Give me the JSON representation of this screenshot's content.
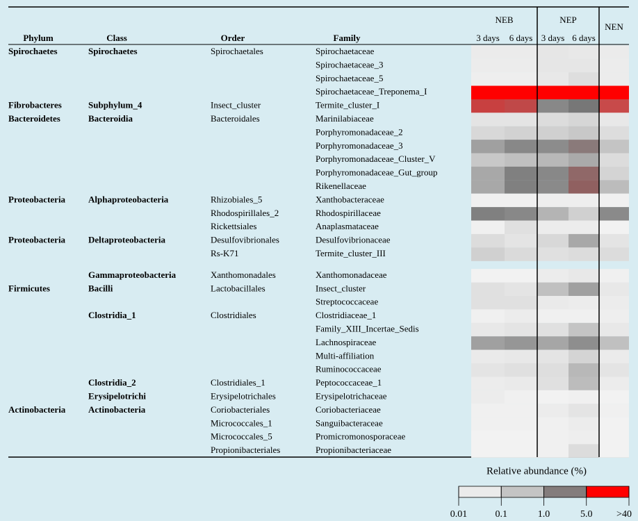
{
  "header": {
    "columns": [
      "Phylum",
      "Class",
      "Order",
      "Family"
    ],
    "groups": [
      {
        "name": "NEB",
        "days": [
          "3 days",
          "6 days"
        ]
      },
      {
        "name": "NEP",
        "days": [
          "3 days",
          "6 days"
        ]
      },
      {
        "name": "NEN"
      }
    ]
  },
  "rows": [
    {
      "phylum": "Spirochaetes",
      "class": "Spirochaetes",
      "order": "Spirochaetales",
      "family": "Spirochaetaceae",
      "cells": [
        "#ebebeb",
        "#ebebeb",
        "#e6e6e6",
        "#e8e8e8",
        "#ebebeb"
      ]
    },
    {
      "family": "Spirochaetaceae_3",
      "cells": [
        "#ececec",
        "#ececec",
        "#e6e6e6",
        "#e6e6e6",
        "#ececec"
      ]
    },
    {
      "family": "Spirochaetaceae_5",
      "cells": [
        "#eeeeee",
        "#eeeeee",
        "#e8e8e8",
        "#dedede",
        "#ececec"
      ]
    },
    {
      "family": "Spirochaetaceae_Treponema_I",
      "cells": [
        "#ff0000",
        "#ff0000",
        "#ff0000",
        "#ff0000",
        "#ff0000"
      ]
    },
    {
      "phylum": "Fibrobacteres",
      "class": "Subphylum_4",
      "order": "Insect_cluster",
      "family": "Termite_cluster_I",
      "cells": [
        "#c84040",
        "#c04848",
        "#888888",
        "#777777",
        "#c84a4a"
      ]
    },
    {
      "phylum": "Bacteroidetes",
      "class": "Bacteroidia",
      "order": "Bacteroidales",
      "family": "Marinilabiaceae",
      "cells": [
        "#e4e4e4",
        "#e4e4e4",
        "#dcdcdc",
        "#d6d6d6",
        "#e8e8e8"
      ]
    },
    {
      "family": "Porphyromonadaceae_2",
      "cells": [
        "#d8d8d8",
        "#d2d2d2",
        "#d0d0d0",
        "#c8c8c8",
        "#dddddd"
      ]
    },
    {
      "family": "Porphyromonadaceae_3",
      "cells": [
        "#a0a0a0",
        "#888888",
        "#8c8c8c",
        "#8a7a7a",
        "#c4c4c4"
      ]
    },
    {
      "family": "Porphyromonadaceae_Cluster_V",
      "cells": [
        "#c8c8c8",
        "#c0c0c0",
        "#b8b8b8",
        "#aaaaaa",
        "#dcdcdc"
      ]
    },
    {
      "family": "Porphyromonadaceae_Gut_group",
      "cells": [
        "#a8a8a8",
        "#808080",
        "#888888",
        "#906868",
        "#d4d4d4"
      ]
    },
    {
      "family": "Rikenellaceae",
      "cells": [
        "#a8a8a8",
        "#808080",
        "#8a8a8a",
        "#906060",
        "#bcbcbc"
      ]
    },
    {
      "phylum": "Proteobacteria",
      "class": "Alphaproteobacteria",
      "order": "Rhizobiales_5",
      "family": "Xanthobacteraceae",
      "cells": [
        "#f0f0f0",
        "#f0f0f0",
        "#eeeeee",
        "#eeeeee",
        "#f0f0f0"
      ]
    },
    {
      "order": "Rhodospirillales_2",
      "family": "Rhodospirillaceae",
      "cells": [
        "#808080",
        "#888888",
        "#b4b4b4",
        "#d0d0d0",
        "#8a8a8a"
      ]
    },
    {
      "order": "Rickettsiales",
      "family": "Anaplasmataceae",
      "cells": [
        "#f0f0f0",
        "#e0e0e0",
        "#ececec",
        "#ececec",
        "#f2f2f2"
      ]
    },
    {
      "phylum": "Proteobacteria",
      "class": "Deltaproteobacteria",
      "order": "Desulfovibrionales",
      "family": "Desulfovibrionaceae",
      "cells": [
        "#dcdcdc",
        "#e4e4e4",
        "#d8d8d8",
        "#a8a8a8",
        "#e4e4e4"
      ]
    },
    {
      "order": "Rs-K71",
      "family": "Termite_cluster_III",
      "cells": [
        "#d0d0d0",
        "#dadada",
        "#e0e0e0",
        "#dcdcdc",
        "#dcdcdc"
      ]
    },
    {
      "class": "Gammaproteobacteria",
      "order": "Xanthomonadales",
      "family": "Xanthomonadaceae",
      "cells": [
        "#f2f2f2",
        "#f2f2f2",
        "#ececec",
        "#e8e8e8",
        "#f0f0f0"
      ]
    },
    {
      "phylum": "Firmicutes",
      "class": "Bacilli",
      "order": "Lactobacillales",
      "family": "Insect_cluster",
      "cells": [
        "#e0e0e0",
        "#e4e4e4",
        "#c0c0c0",
        "#a0a0a0",
        "#e8e8e8"
      ]
    },
    {
      "family": "Streptococcaceae",
      "cells": [
        "#e0e0e0",
        "#e0e0e0",
        "#eaeaea",
        "#ececec",
        "#ececec"
      ]
    },
    {
      "class": "Clostridia_1",
      "order": "Clostridiales",
      "family": "Clostridiaceae_1",
      "cells": [
        "#f0f0f0",
        "#ececec",
        "#f0f0f0",
        "#f0f0f0",
        "#eeeeee"
      ]
    },
    {
      "family": "Family_XIII_Incertae_Sedis",
      "cells": [
        "#e8e8e8",
        "#e4e4e4",
        "#e0e0e0",
        "#c4c4c4",
        "#e8e8e8"
      ]
    },
    {
      "family": "Lachnospiraceae",
      "cells": [
        "#a0a0a0",
        "#969696",
        "#a6a6a6",
        "#8e8e8e",
        "#c0c0c0"
      ]
    },
    {
      "family": "Multi-affiliation",
      "cells": [
        "#eaeaea",
        "#e8e8e8",
        "#e4e4e4",
        "#d4d4d4",
        "#ebebeb"
      ]
    },
    {
      "family": "Ruminococcaceae",
      "cells": [
        "#e4e4e4",
        "#e0e0e0",
        "#dedede",
        "#b8b8b8",
        "#e4e4e4"
      ]
    },
    {
      "class": "Clostridia_2",
      "order": "Clostridiales_1",
      "family": "Peptococcaceae_1",
      "cells": [
        "#ececec",
        "#eaeaea",
        "#e0e0e0",
        "#bcbcbc",
        "#ececec"
      ]
    },
    {
      "class": "Erysipelotrichi",
      "order": "Erysipelotrichales",
      "family": "Erysipelotrichaceae",
      "cells": [
        "#ececec",
        "#f0f0f0",
        "#f2f2f2",
        "#f0f0f0",
        "#f2f2f2"
      ]
    },
    {
      "phylum": "Actinobacteria",
      "class": "Actinobacteria",
      "order": "Coriobacteriales",
      "family": "Coriobacteriaceae",
      "cells": [
        "#f0f0f0",
        "#f0f0f0",
        "#ececec",
        "#e4e4e4",
        "#f0f0f0"
      ]
    },
    {
      "order": "Micrococcales_1",
      "family": "Sanguibacteraceae",
      "cells": [
        "#f0f0f0",
        "#f0f0f0",
        "#f0f0f0",
        "#ececec",
        "#f2f2f2"
      ]
    },
    {
      "order": "Micrococcales_5",
      "family": "Promicromonosporaceae",
      "cells": [
        "#f2f2f2",
        "#f2f2f2",
        "#f0f0f0",
        "#eeeeee",
        "#f2f2f2"
      ]
    },
    {
      "order": "Propionibacteriales",
      "family": "Propionibacteriaceae",
      "cells": [
        "#f2f2f2",
        "#f2f2f2",
        "#f0f0f0",
        "#dcdcdc",
        "#f2f2f2"
      ]
    }
  ],
  "legend": {
    "title": "Relative abundance (%)",
    "colors": [
      "#ebebeb",
      "#c4c4c4",
      "#847c7c",
      "#ff0000"
    ],
    "ticks": [
      "0.01",
      "0.1",
      "1.0",
      "5.0",
      ">40"
    ]
  }
}
